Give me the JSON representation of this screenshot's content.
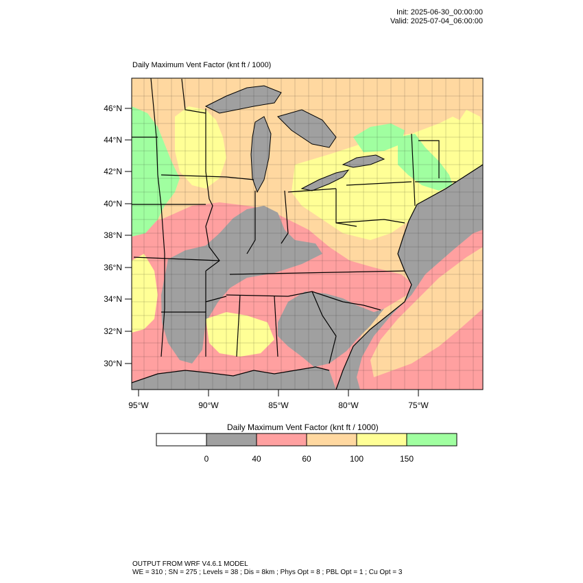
{
  "header": {
    "init": "Init: 2025-06-30_00:00:00",
    "valid": "Valid: 2025-07-04_06:00:00"
  },
  "map": {
    "title": "Daily Maximum Vent Factor   (knt ft / 1000)",
    "lat_labels": [
      "46°N",
      "44°N",
      "42°N",
      "40°N",
      "38°N",
      "36°N",
      "34°N",
      "32°N",
      "30°N"
    ],
    "lon_labels": [
      "95°W",
      "90°W",
      "85°W",
      "80°W",
      "75°W"
    ],
    "colors": {
      "ocean": "#a0a0a0",
      "land_gray": "#a0a0a0",
      "pink": "#ffa0a0",
      "orange": "#ffd8a0",
      "yellow": "#ffff96",
      "green": "#a0ffa0",
      "line": "#000000"
    }
  },
  "legend": {
    "title": "Daily Maximum Vent Factor  (knt ft / 1000)",
    "labels": [
      "0",
      "40",
      "60",
      "100",
      "150"
    ],
    "colors": [
      "#ffffff",
      "#a0a0a0",
      "#ffa0a0",
      "#ffd8a0",
      "#ffff96",
      "#a0ffa0"
    ]
  },
  "footer": {
    "line1": "OUTPUT FROM WRF V4.6.1 MODEL",
    "line2": "WE = 310 ; SN = 275 ; Levels = 38 ; Dis = 8km ; Phys Opt = 8 ; PBL Opt = 1 ; Cu Opt = 3"
  }
}
